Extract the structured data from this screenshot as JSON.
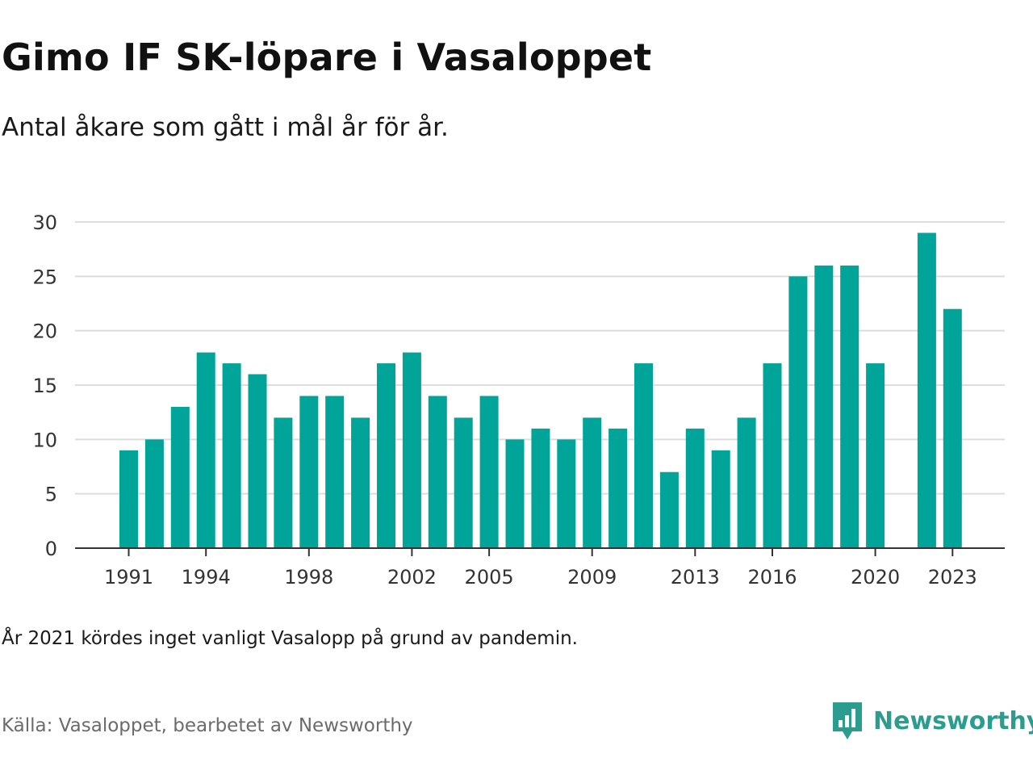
{
  "title": "Gimo IF SK-löpare i Vasaloppet",
  "subtitle": "Antal åkare som gått i mål år för år.",
  "note": "År 2021 kördes inget vanligt Vasalopp på grund av pandemin.",
  "source": "Källa: Vasaloppet, bearbetet av Newsworthy",
  "logo": {
    "text": "Newsworthy",
    "icon": "newsworthy-logo-icon",
    "color": "#2a9d8f"
  },
  "chart_data": {
    "type": "bar",
    "categories": [
      1991,
      1992,
      1993,
      1994,
      1995,
      1996,
      1997,
      1998,
      1999,
      2000,
      2001,
      2002,
      2003,
      2004,
      2005,
      2006,
      2007,
      2008,
      2009,
      2010,
      2011,
      2012,
      2013,
      2014,
      2015,
      2016,
      2017,
      2018,
      2019,
      2020,
      2021,
      2022,
      2023
    ],
    "values": [
      9,
      10,
      13,
      18,
      17,
      16,
      12,
      14,
      14,
      12,
      17,
      18,
      14,
      12,
      14,
      10,
      11,
      10,
      12,
      11,
      17,
      7,
      11,
      9,
      12,
      17,
      25,
      26,
      26,
      17,
      null,
      29,
      22
    ],
    "x_tick_labels": [
      "1991",
      "1994",
      "1998",
      "2002",
      "2005",
      "2009",
      "2013",
      "2016",
      "2020",
      "2023"
    ],
    "y_ticks": [
      0,
      5,
      10,
      15,
      20,
      25,
      30
    ],
    "ylim": [
      0,
      30
    ],
    "bar_color": "#00a499",
    "grid": true
  }
}
